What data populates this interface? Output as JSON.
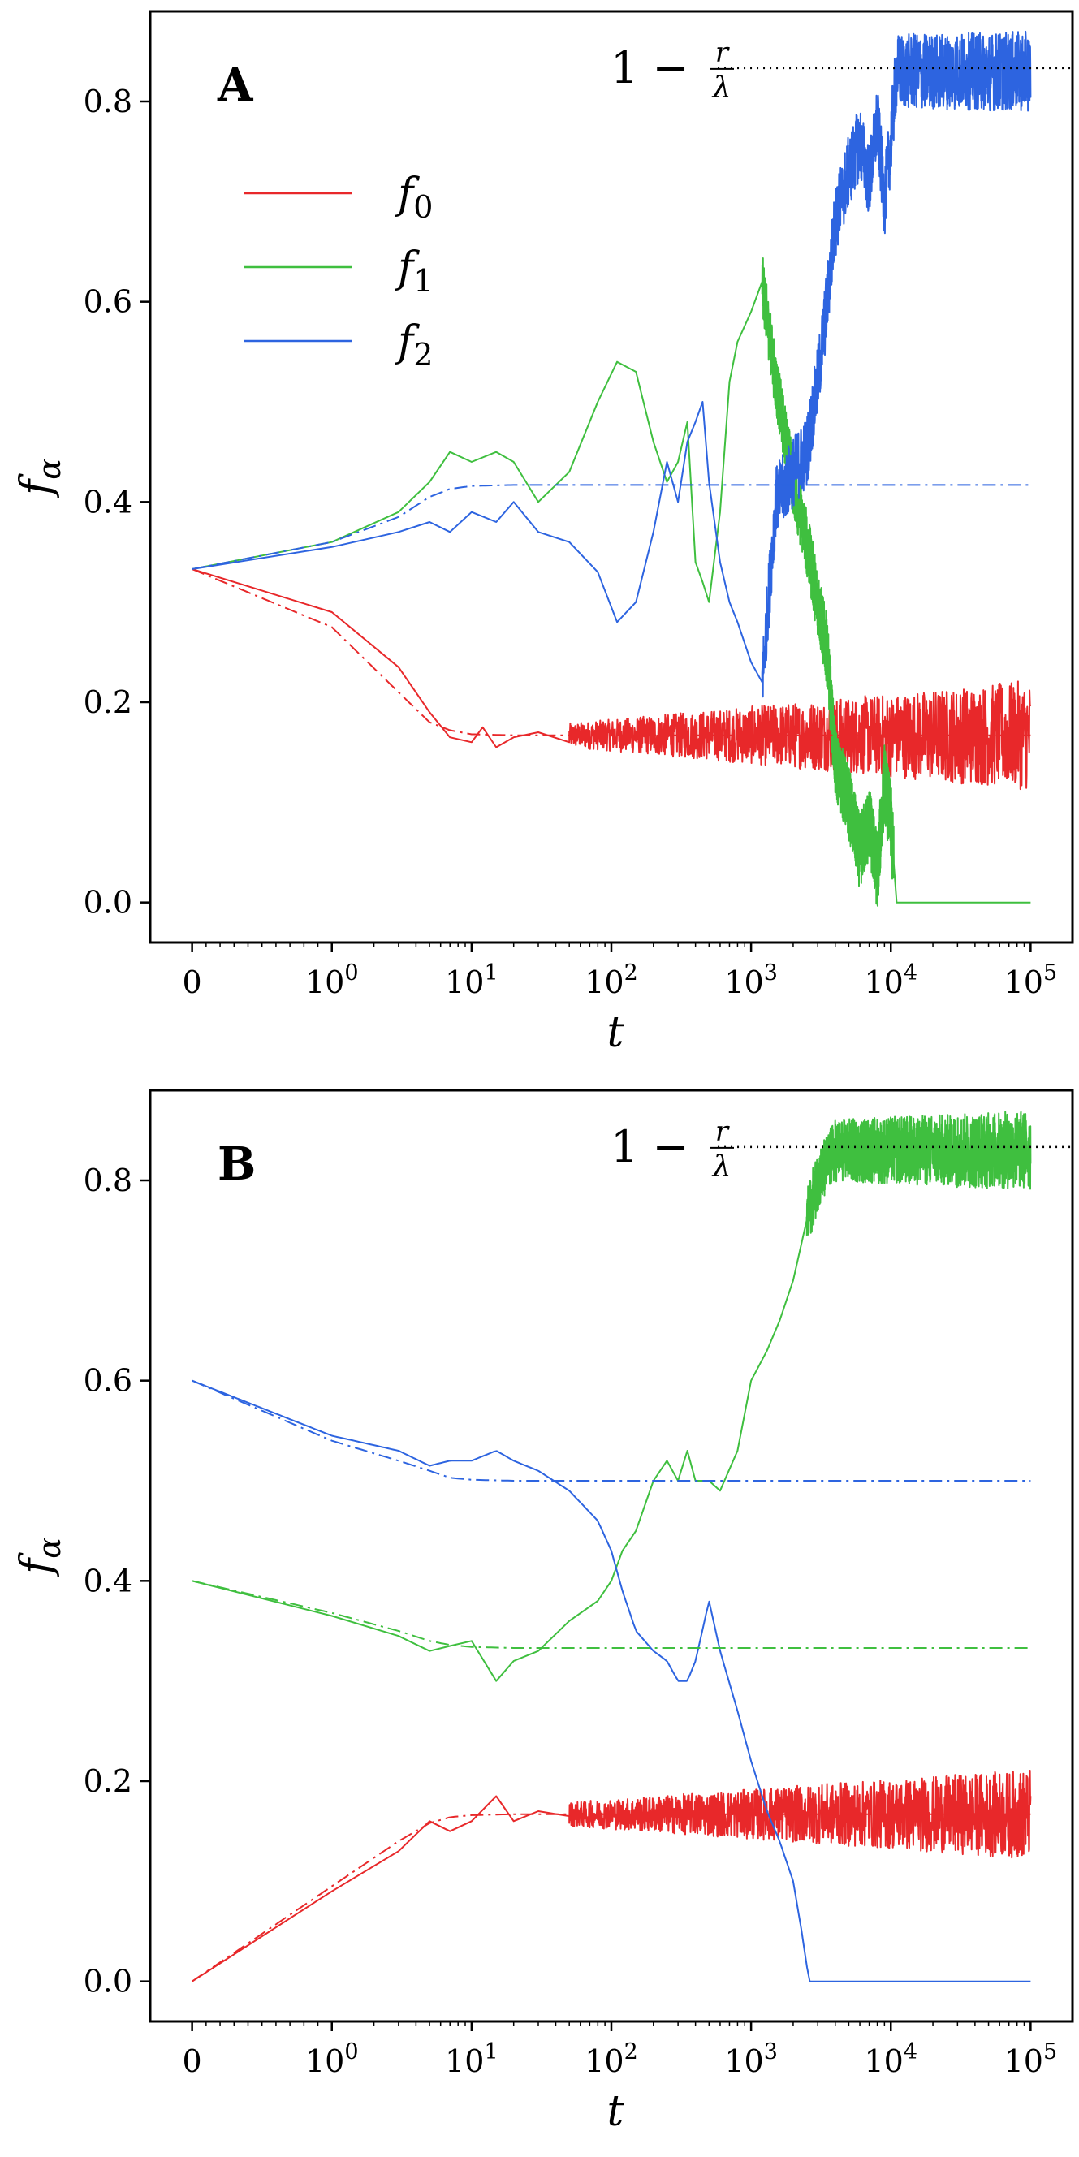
{
  "chart_data": [
    {
      "type": "line",
      "panel_label": "A",
      "xscale": "symlog",
      "xlabel": "t",
      "ylabel": "f_α",
      "xlim": [
        0,
        100000
      ],
      "ylim": [
        -0.04,
        0.89
      ],
      "xticks": [
        {
          "value": 0,
          "base": "0",
          "exp": ""
        },
        {
          "value": 1,
          "base": "10",
          "exp": "0"
        },
        {
          "value": 10,
          "base": "10",
          "exp": "1"
        },
        {
          "value": 100,
          "base": "10",
          "exp": "2"
        },
        {
          "value": 1000,
          "base": "10",
          "exp": "3"
        },
        {
          "value": 10000,
          "base": "10",
          "exp": "4"
        },
        {
          "value": 100000,
          "base": "10",
          "exp": "5"
        }
      ],
      "yticks": [
        {
          "value": 0.0,
          "label": "0.0"
        },
        {
          "value": 0.2,
          "label": "0.2"
        },
        {
          "value": 0.4,
          "label": "0.4"
        },
        {
          "value": 0.6,
          "label": "0.6"
        },
        {
          "value": 0.8,
          "label": "0.8"
        }
      ],
      "annotation": {
        "prefix": "1 −",
        "num": "r",
        "den": "λ",
        "value": 0.8333,
        "x_start": 20000,
        "style": "dotted"
      },
      "legend": {
        "placement": "upper-left",
        "entries": [
          {
            "label": "f",
            "sub": "0",
            "color": "#e8282a"
          },
          {
            "label": "f",
            "sub": "1",
            "color": "#3fbf3f"
          },
          {
            "label": "f",
            "sub": "2",
            "color": "#2d64e0"
          }
        ]
      },
      "series": [
        {
          "name": "f0",
          "style": "solid",
          "color": "#e8282a",
          "points": [
            [
              0,
              0.333
            ],
            [
              1,
              0.29
            ],
            [
              3,
              0.235
            ],
            [
              5,
              0.19
            ],
            [
              7,
              0.165
            ],
            [
              10,
              0.16
            ],
            [
              12,
              0.175
            ],
            [
              15,
              0.155
            ],
            [
              20,
              0.165
            ],
            [
              30,
              0.17
            ],
            [
              50,
              0.16
            ]
          ],
          "noise": {
            "from": 50,
            "to": 100000,
            "center": 0.167,
            "amp_start": 0.012,
            "amp_end": 0.055
          }
        },
        {
          "name": "f1",
          "style": "solid",
          "color": "#3fbf3f",
          "points": [
            [
              0,
              0.333
            ],
            [
              1,
              0.36
            ],
            [
              3,
              0.39
            ],
            [
              5,
              0.42
            ],
            [
              7,
              0.45
            ],
            [
              10,
              0.44
            ],
            [
              15,
              0.45
            ],
            [
              20,
              0.44
            ],
            [
              30,
              0.4
            ],
            [
              50,
              0.43
            ],
            [
              80,
              0.5
            ],
            [
              110,
              0.54
            ],
            [
              150,
              0.53
            ],
            [
              200,
              0.46
            ],
            [
              250,
              0.42
            ],
            [
              300,
              0.44
            ],
            [
              350,
              0.48
            ],
            [
              400,
              0.34
            ],
            [
              450,
              0.32
            ],
            [
              500,
              0.3
            ],
            [
              600,
              0.39
            ],
            [
              700,
              0.52
            ],
            [
              800,
              0.56
            ],
            [
              1000,
              0.59
            ],
            [
              1200,
              0.62
            ],
            [
              1500,
              0.52
            ],
            [
              2000,
              0.42
            ],
            [
              2500,
              0.36
            ],
            [
              3000,
              0.3
            ],
            [
              3500,
              0.25
            ],
            [
              4000,
              0.14
            ],
            [
              5000,
              0.1
            ],
            [
              6000,
              0.05
            ],
            [
              7000,
              0.08
            ],
            [
              8000,
              0.03
            ],
            [
              9000,
              0.12
            ],
            [
              10000,
              0.08
            ],
            [
              11000,
              0.0
            ],
            [
              100000,
              0.0
            ]
          ],
          "noise": {
            "from": 1200,
            "to": 10500,
            "center": null,
            "amp_start": 0.03,
            "amp_end": 0.04
          }
        },
        {
          "name": "f2",
          "style": "solid",
          "color": "#2d64e0",
          "points": [
            [
              0,
              0.333
            ],
            [
              1,
              0.355
            ],
            [
              3,
              0.37
            ],
            [
              5,
              0.38
            ],
            [
              7,
              0.37
            ],
            [
              10,
              0.39
            ],
            [
              15,
              0.38
            ],
            [
              20,
              0.4
            ],
            [
              30,
              0.37
            ],
            [
              50,
              0.36
            ],
            [
              80,
              0.33
            ],
            [
              110,
              0.28
            ],
            [
              150,
              0.3
            ],
            [
              200,
              0.37
            ],
            [
              250,
              0.44
            ],
            [
              300,
              0.4
            ],
            [
              350,
              0.46
            ],
            [
              400,
              0.48
            ],
            [
              450,
              0.5
            ],
            [
              500,
              0.42
            ],
            [
              600,
              0.34
            ],
            [
              700,
              0.3
            ],
            [
              800,
              0.28
            ],
            [
              1000,
              0.24
            ],
            [
              1200,
              0.22
            ],
            [
              1500,
              0.4
            ],
            [
              2000,
              0.43
            ],
            [
              2500,
              0.45
            ],
            [
              3000,
              0.52
            ],
            [
              3500,
              0.6
            ],
            [
              4000,
              0.68
            ],
            [
              5000,
              0.73
            ],
            [
              6000,
              0.76
            ],
            [
              7000,
              0.72
            ],
            [
              8000,
              0.78
            ],
            [
              9000,
              0.7
            ],
            [
              10000,
              0.76
            ],
            [
              11000,
              0.83
            ],
            [
              100000,
              0.83
            ]
          ],
          "noise": {
            "from": 1200,
            "to": 100000,
            "center": null,
            "amp_start": 0.035,
            "amp_end": 0.04
          }
        },
        {
          "name": "f0-mean",
          "style": "dashdot",
          "color": "#e8282a",
          "points": [
            [
              0,
              0.333
            ],
            [
              1,
              0.275
            ],
            [
              3,
              0.21
            ],
            [
              5,
              0.18
            ],
            [
              7,
              0.172
            ],
            [
              10,
              0.168
            ],
            [
              20,
              0.167
            ],
            [
              100000,
              0.167
            ]
          ]
        },
        {
          "name": "f12-mean",
          "style": "dashdot",
          "color": "#2d64e0",
          "points": [
            [
              0,
              0.333
            ],
            [
              1,
              0.36
            ],
            [
              3,
              0.385
            ],
            [
              5,
              0.405
            ],
            [
              7,
              0.413
            ],
            [
              10,
              0.416
            ],
            [
              20,
              0.417
            ],
            [
              100000,
              0.417
            ]
          ]
        }
      ]
    },
    {
      "type": "line",
      "panel_label": "B",
      "xscale": "symlog",
      "xlabel": "t",
      "ylabel": "f_α",
      "xlim": [
        0,
        100000
      ],
      "ylim": [
        -0.04,
        0.89
      ],
      "xticks": [
        {
          "value": 0,
          "base": "0",
          "exp": ""
        },
        {
          "value": 1,
          "base": "10",
          "exp": "0"
        },
        {
          "value": 10,
          "base": "10",
          "exp": "1"
        },
        {
          "value": 100,
          "base": "10",
          "exp": "2"
        },
        {
          "value": 1000,
          "base": "10",
          "exp": "3"
        },
        {
          "value": 10000,
          "base": "10",
          "exp": "4"
        },
        {
          "value": 100000,
          "base": "10",
          "exp": "5"
        }
      ],
      "yticks": [
        {
          "value": 0.0,
          "label": "0.0"
        },
        {
          "value": 0.2,
          "label": "0.2"
        },
        {
          "value": 0.4,
          "label": "0.4"
        },
        {
          "value": 0.6,
          "label": "0.6"
        },
        {
          "value": 0.8,
          "label": "0.8"
        }
      ],
      "annotation": {
        "prefix": "1 −",
        "num": "r",
        "den": "λ",
        "value": 0.8333,
        "x_start": 20000,
        "style": "dotted"
      },
      "series": [
        {
          "name": "f0",
          "style": "solid",
          "color": "#e8282a",
          "points": [
            [
              0,
              0.0
            ],
            [
              1,
              0.09
            ],
            [
              3,
              0.13
            ],
            [
              5,
              0.16
            ],
            [
              7,
              0.15
            ],
            [
              10,
              0.16
            ],
            [
              15,
              0.185
            ],
            [
              20,
              0.16
            ],
            [
              30,
              0.17
            ],
            [
              50,
              0.165
            ]
          ],
          "noise": {
            "from": 50,
            "to": 100000,
            "center": 0.167,
            "amp_start": 0.012,
            "amp_end": 0.045
          }
        },
        {
          "name": "f1",
          "style": "solid",
          "color": "#3fbf3f",
          "points": [
            [
              0,
              0.4
            ],
            [
              1,
              0.365
            ],
            [
              3,
              0.345
            ],
            [
              5,
              0.33
            ],
            [
              7,
              0.335
            ],
            [
              10,
              0.34
            ],
            [
              15,
              0.3
            ],
            [
              20,
              0.32
            ],
            [
              30,
              0.33
            ],
            [
              50,
              0.36
            ],
            [
              80,
              0.38
            ],
            [
              100,
              0.4
            ],
            [
              120,
              0.43
            ],
            [
              150,
              0.45
            ],
            [
              200,
              0.5
            ],
            [
              250,
              0.52
            ],
            [
              300,
              0.5
            ],
            [
              350,
              0.53
            ],
            [
              400,
              0.5
            ],
            [
              500,
              0.5
            ],
            [
              600,
              0.49
            ],
            [
              800,
              0.53
            ],
            [
              1000,
              0.6
            ],
            [
              1300,
              0.63
            ],
            [
              1600,
              0.66
            ],
            [
              2000,
              0.7
            ],
            [
              2500,
              0.76
            ],
            [
              3000,
              0.8
            ],
            [
              4000,
              0.83
            ],
            [
              100000,
              0.83
            ]
          ],
          "noise": {
            "from": 2500,
            "to": 100000,
            "center": null,
            "amp_start": 0.03,
            "amp_end": 0.04
          }
        },
        {
          "name": "f2",
          "style": "solid",
          "color": "#2d64e0",
          "points": [
            [
              0,
              0.6
            ],
            [
              1,
              0.545
            ],
            [
              3,
              0.53
            ],
            [
              5,
              0.515
            ],
            [
              7,
              0.52
            ],
            [
              10,
              0.52
            ],
            [
              15,
              0.53
            ],
            [
              20,
              0.52
            ],
            [
              30,
              0.51
            ],
            [
              50,
              0.49
            ],
            [
              80,
              0.46
            ],
            [
              100,
              0.43
            ],
            [
              120,
              0.39
            ],
            [
              150,
              0.35
            ],
            [
              200,
              0.33
            ],
            [
              250,
              0.32
            ],
            [
              300,
              0.3
            ],
            [
              350,
              0.3
            ],
            [
              400,
              0.32
            ],
            [
              500,
              0.38
            ],
            [
              600,
              0.33
            ],
            [
              800,
              0.27
            ],
            [
              1000,
              0.22
            ],
            [
              1300,
              0.17
            ],
            [
              1600,
              0.14
            ],
            [
              2000,
              0.1
            ],
            [
              2300,
              0.05
            ],
            [
              2600,
              0.0
            ],
            [
              100000,
              0.0
            ]
          ]
        },
        {
          "name": "f0-mean",
          "style": "dashdot",
          "color": "#e8282a",
          "points": [
            [
              0,
              0.0
            ],
            [
              1,
              0.095
            ],
            [
              3,
              0.14
            ],
            [
              5,
              0.158
            ],
            [
              7,
              0.164
            ],
            [
              10,
              0.166
            ],
            [
              20,
              0.167
            ],
            [
              100000,
              0.167
            ]
          ]
        },
        {
          "name": "f1-mean",
          "style": "dashdot",
          "color": "#3fbf3f",
          "points": [
            [
              0,
              0.4
            ],
            [
              1,
              0.368
            ],
            [
              3,
              0.35
            ],
            [
              5,
              0.34
            ],
            [
              7,
              0.336
            ],
            [
              10,
              0.334
            ],
            [
              20,
              0.333
            ],
            [
              100000,
              0.333
            ]
          ]
        },
        {
          "name": "f2-mean",
          "style": "dashdot",
          "color": "#2d64e0",
          "points": [
            [
              0,
              0.6
            ],
            [
              1,
              0.54
            ],
            [
              3,
              0.52
            ],
            [
              5,
              0.51
            ],
            [
              7,
              0.503
            ],
            [
              10,
              0.501
            ],
            [
              20,
              0.5
            ],
            [
              100000,
              0.5
            ]
          ]
        }
      ]
    }
  ]
}
